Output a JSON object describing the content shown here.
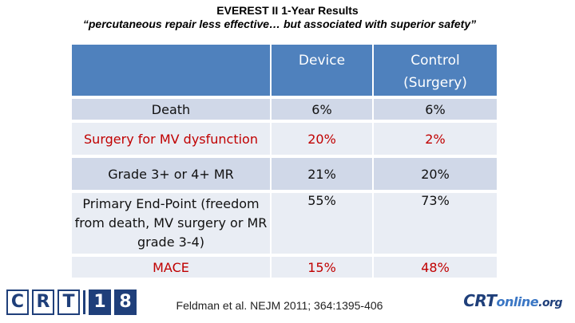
{
  "title": "EVEREST II 1-Year Results",
  "subtitle": "“percutaneous repair less effective… but associated with superior safety”",
  "table": {
    "headers": [
      "",
      "Device",
      "Control\n(Surgery)"
    ],
    "rows": [
      {
        "label": "Death",
        "device": "6%",
        "control": "6%"
      },
      {
        "label": "Surgery for MV dysfunction",
        "device": "20%",
        "control": "2%"
      },
      {
        "label": "Grade 3+ or 4+ MR",
        "device": "21%",
        "control": "20%"
      },
      {
        "label": "Primary End-Point (freedom from death, MV surgery or MR grade 3-4)",
        "device": "55%",
        "control": "73%"
      },
      {
        "label": "MACE",
        "device": "15%",
        "control": "48%"
      }
    ]
  },
  "footer": {
    "citation": "Feldman et al. NEJM 2011; 364:1395-406",
    "logo_left": "CRT18",
    "logo_right": "CRTonline.org"
  },
  "colors": {
    "header_blue": "#4f81bd",
    "row_light": "#e9edf4",
    "row_dark": "#d0d8e8",
    "highlight_red": "#c00000",
    "logo_navy": "#1f3f7a"
  }
}
